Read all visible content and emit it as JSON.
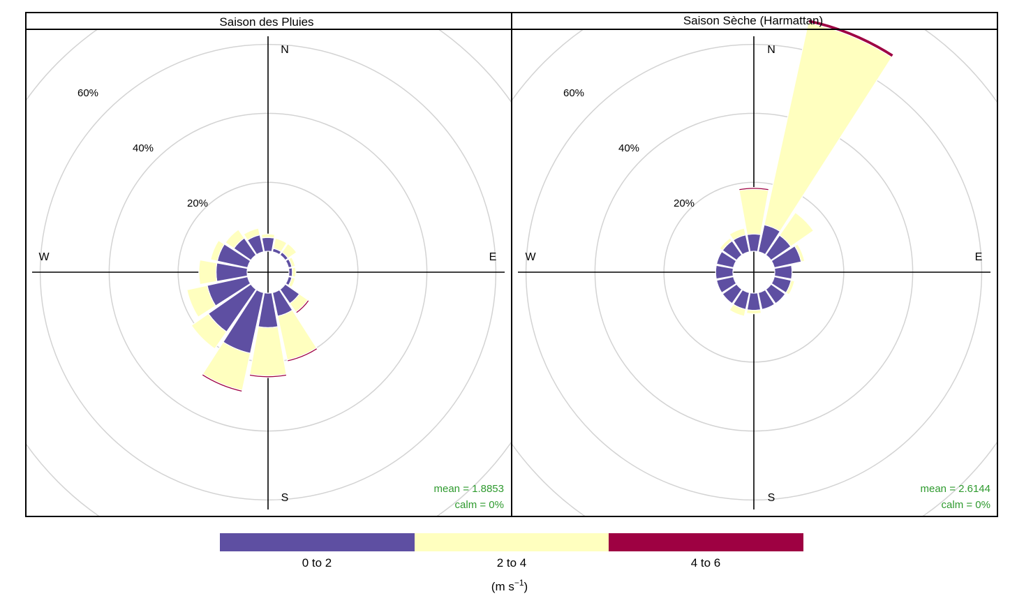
{
  "chart_data": [
    {
      "type": "windrose",
      "title": "Saison des Pluies",
      "directions": [
        "N",
        "NNE",
        "NE",
        "ENE",
        "E",
        "ESE",
        "SE",
        "SSE",
        "S",
        "SSW",
        "SW",
        "WSW",
        "W",
        "WNW",
        "NW",
        "NNW"
      ],
      "bins": [
        "0 to 2",
        "2 to 4",
        "4 to 6"
      ],
      "cumulative_percent": [
        [
          4,
          5,
          5
        ],
        [
          1,
          4,
          4
        ],
        [
          1,
          4,
          4
        ],
        [
          1,
          2,
          2
        ],
        [
          1,
          2,
          2
        ],
        [
          1,
          2,
          2
        ],
        [
          5,
          8,
          8.5
        ],
        [
          7,
          20,
          20.5
        ],
        [
          10,
          24,
          24.5
        ],
        [
          18,
          29,
          29.5
        ],
        [
          15,
          21,
          21
        ],
        [
          12,
          18,
          18
        ],
        [
          9,
          14,
          14
        ],
        [
          9,
          11,
          11
        ],
        [
          6,
          9,
          9
        ],
        [
          5,
          7,
          7
        ]
      ],
      "ring_labels": [
        "20%",
        "40%",
        "60%"
      ],
      "compass": [
        "N",
        "E",
        "S",
        "W"
      ],
      "stats": [
        "mean = 1.8853",
        "calm = 0%"
      ]
    },
    {
      "type": "windrose",
      "title": "Saison Sèche (Harmattan)",
      "directions": [
        "N",
        "NNE",
        "NE",
        "ENE",
        "E",
        "ESE",
        "SE",
        "SSE",
        "S",
        "SSW",
        "SW",
        "WSW",
        "W",
        "WNW",
        "NW",
        "NNW"
      ],
      "bins": [
        "0 to 2",
        "2 to 4",
        "4 to 6"
      ],
      "cumulative_percent": [
        [
          5,
          18,
          18.5
        ],
        [
          8,
          68,
          69
        ],
        [
          7,
          15,
          15
        ],
        [
          8,
          9,
          9
        ],
        [
          5,
          5,
          5
        ],
        [
          5,
          6,
          6
        ],
        [
          5,
          5,
          5
        ],
        [
          5,
          5,
          5
        ],
        [
          5,
          6,
          6
        ],
        [
          5,
          7,
          7
        ],
        [
          5,
          5,
          5
        ],
        [
          5,
          5,
          5
        ],
        [
          5,
          5,
          5
        ],
        [
          5,
          5,
          5
        ],
        [
          5,
          6,
          6
        ],
        [
          5,
          7,
          7
        ]
      ],
      "ring_labels": [
        "20%",
        "40%",
        "60%"
      ],
      "compass": [
        "N",
        "E",
        "S",
        "W"
      ],
      "stats": [
        "mean = 2.6144",
        "calm = 0%"
      ]
    }
  ],
  "legend": {
    "items": [
      {
        "label": "0 to 2",
        "color": "#5e4fa2"
      },
      {
        "label": "2 to 4",
        "color": "#ffffbf"
      },
      {
        "label": "4 to 6",
        "color": "#9e0142"
      }
    ],
    "unit_base": "(m s",
    "unit_sup": "−1",
    "unit_close": ")"
  },
  "colors": {
    "grid": "#d3d3d3",
    "stats": "#2e9a2e"
  }
}
